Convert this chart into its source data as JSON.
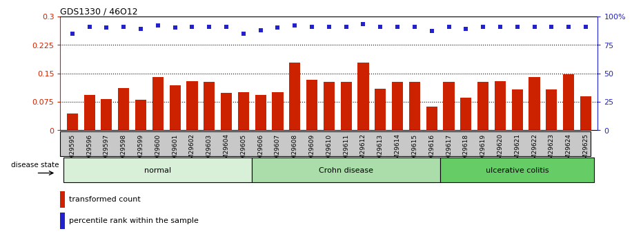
{
  "title": "GDS1330 / 46O12",
  "samples": [
    "GSM29595",
    "GSM29596",
    "GSM29597",
    "GSM29598",
    "GSM29599",
    "GSM29600",
    "GSM29601",
    "GSM29602",
    "GSM29603",
    "GSM29604",
    "GSM29605",
    "GSM29606",
    "GSM29607",
    "GSM29608",
    "GSM29609",
    "GSM29610",
    "GSM29611",
    "GSM29612",
    "GSM29613",
    "GSM29614",
    "GSM29615",
    "GSM29616",
    "GSM29617",
    "GSM29618",
    "GSM29619",
    "GSM29620",
    "GSM29621",
    "GSM29622",
    "GSM29623",
    "GSM29624",
    "GSM29625"
  ],
  "bar_values": [
    0.045,
    0.093,
    0.083,
    0.112,
    0.08,
    0.14,
    0.118,
    0.13,
    0.128,
    0.098,
    0.1,
    0.093,
    0.1,
    0.178,
    0.133,
    0.127,
    0.127,
    0.178,
    0.11,
    0.128,
    0.128,
    0.063,
    0.128,
    0.085,
    0.128,
    0.13,
    0.108,
    0.14,
    0.107,
    0.148,
    0.09
  ],
  "dot_values": [
    85,
    91,
    90,
    91,
    89,
    92,
    90,
    91,
    91,
    91,
    85,
    88,
    90,
    92,
    91,
    91,
    91,
    93,
    91,
    91,
    91,
    87,
    91,
    89,
    91,
    91,
    91,
    91,
    91,
    91,
    91
  ],
  "bar_color": "#cc2200",
  "dot_color": "#2222cc",
  "ylim_left": [
    0,
    0.3
  ],
  "ylim_right": [
    0,
    100
  ],
  "yticks_left": [
    0,
    0.075,
    0.15,
    0.225,
    0.3
  ],
  "yticks_right": [
    0,
    25,
    50,
    75,
    100
  ],
  "ytick_labels_left": [
    "0",
    "0.075",
    "0.15",
    "0.225",
    "0.3"
  ],
  "ytick_labels_right": [
    "0",
    "25",
    "50",
    "75",
    "100%"
  ],
  "hlines": [
    0.075,
    0.15,
    0.225
  ],
  "groups": [
    {
      "label": "normal",
      "start": 0,
      "end": 10,
      "color": "#d8f0d8"
    },
    {
      "label": "Crohn disease",
      "start": 11,
      "end": 21,
      "color": "#aaddaa"
    },
    {
      "label": "ulcerative colitis",
      "start": 22,
      "end": 30,
      "color": "#66cc66"
    }
  ],
  "disease_state_label": "disease state",
  "legend_bar_label": "transformed count",
  "legend_dot_label": "percentile rank within the sample",
  "background_color": "#ffffff",
  "plot_bg_color": "#ffffff",
  "gray_bar_color": "#c8c8c8",
  "tick_label_fontsize": 6.5
}
